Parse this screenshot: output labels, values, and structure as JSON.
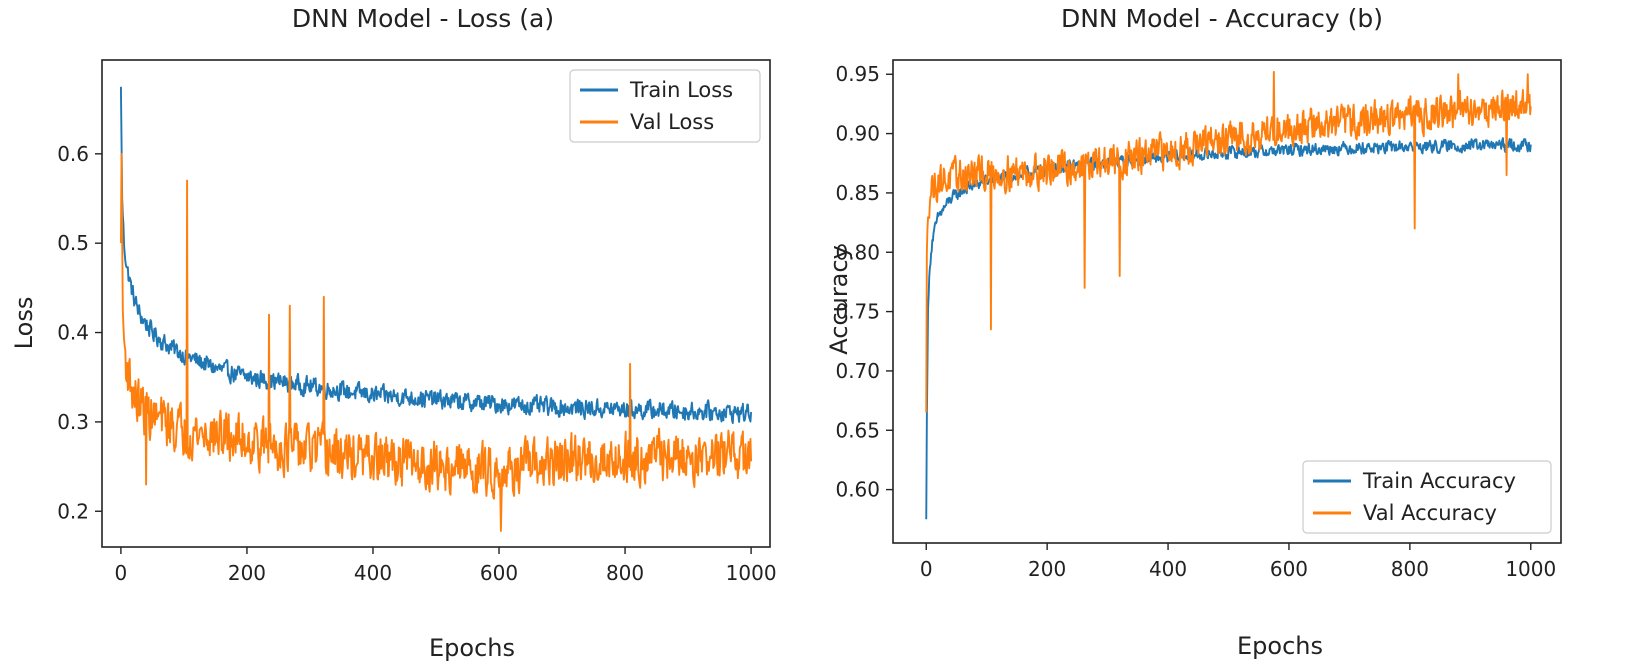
{
  "colors": {
    "train": "#1f77b4",
    "val": "#ff7f0e",
    "axis": "#222222"
  },
  "chart_data": [
    {
      "type": "line",
      "title": "DNN Model - Loss (a)",
      "xlabel": "Epochs",
      "ylabel": "Loss",
      "xlim": [
        -30,
        1030
      ],
      "ylim": [
        0.16,
        0.705
      ],
      "xticks": [
        0,
        200,
        400,
        600,
        800,
        1000
      ],
      "xtick_labels": [
        "0",
        "200",
        "400",
        "600",
        "800",
        "1000"
      ],
      "yticks": [
        0.2,
        0.3,
        0.4,
        0.5,
        0.6
      ],
      "ytick_labels": [
        "0.2",
        "0.3",
        "0.4",
        "0.5",
        "0.6"
      ],
      "legend_position": "top-right",
      "series": [
        {
          "name": "Train Loss",
          "color": "#1f77b4",
          "x": [
            0,
            2,
            5,
            10,
            20,
            30,
            50,
            75,
            100,
            150,
            200,
            250,
            300,
            350,
            400,
            450,
            500,
            550,
            600,
            650,
            700,
            750,
            800,
            850,
            900,
            950,
            1000
          ],
          "y": [
            0.675,
            0.55,
            0.5,
            0.47,
            0.44,
            0.42,
            0.4,
            0.385,
            0.375,
            0.36,
            0.35,
            0.345,
            0.34,
            0.335,
            0.33,
            0.328,
            0.325,
            0.322,
            0.32,
            0.318,
            0.316,
            0.315,
            0.314,
            0.313,
            0.312,
            0.311,
            0.31
          ],
          "noise": 0.014
        },
        {
          "name": "Val Loss",
          "color": "#ff7f0e",
          "x": [
            0,
            1,
            3,
            6,
            10,
            20,
            40,
            70,
            100,
            150,
            200,
            250,
            300,
            350,
            400,
            450,
            500,
            550,
            600,
            650,
            700,
            750,
            800,
            850,
            900,
            950,
            1000
          ],
          "y": [
            0.5,
            0.6,
            0.42,
            0.38,
            0.36,
            0.33,
            0.31,
            0.3,
            0.29,
            0.285,
            0.28,
            0.272,
            0.268,
            0.262,
            0.258,
            0.255,
            0.25,
            0.248,
            0.245,
            0.25,
            0.255,
            0.258,
            0.26,
            0.262,
            0.26,
            0.262,
            0.26
          ],
          "noise": 0.038,
          "spikes": [
            [
              105,
              0.57
            ],
            [
              235,
              0.42
            ],
            [
              268,
              0.43
            ],
            [
              322,
              0.44
            ],
            [
              808,
              0.365
            ],
            [
              40,
              0.23
            ],
            [
              603,
              0.178
            ]
          ]
        }
      ]
    },
    {
      "type": "line",
      "title": "DNN Model - Accuracy (b)",
      "xlabel": "Epochs",
      "ylabel": "Accuracy",
      "xlim": [
        -55,
        1050
      ],
      "ylim": [
        0.555,
        0.962
      ],
      "xticks": [
        0,
        200,
        400,
        600,
        800,
        1000
      ],
      "xtick_labels": [
        "0",
        "200",
        "400",
        "600",
        "800",
        "1000"
      ],
      "yticks": [
        0.6,
        0.65,
        0.7,
        0.75,
        0.8,
        0.85,
        0.9,
        0.95
      ],
      "ytick_labels": [
        "0.60",
        "0.65",
        "0.70",
        "0.75",
        "0.80",
        "0.85",
        "0.90",
        "0.95"
      ],
      "legend_position": "bottom-right",
      "series": [
        {
          "name": "Train Accuracy",
          "color": "#1f77b4",
          "x": [
            0,
            1,
            3,
            6,
            10,
            20,
            40,
            70,
            100,
            150,
            200,
            250,
            300,
            350,
            400,
            450,
            500,
            550,
            600,
            650,
            700,
            750,
            800,
            850,
            900,
            950,
            1000
          ],
          "y": [
            0.575,
            0.66,
            0.75,
            0.79,
            0.81,
            0.83,
            0.845,
            0.855,
            0.86,
            0.865,
            0.87,
            0.873,
            0.876,
            0.878,
            0.88,
            0.882,
            0.884,
            0.885,
            0.886,
            0.887,
            0.888,
            0.888,
            0.889,
            0.889,
            0.89,
            0.89,
            0.89
          ],
          "noise": 0.007
        },
        {
          "name": "Val Accuracy",
          "color": "#ff7f0e",
          "x": [
            0,
            1,
            3,
            6,
            10,
            20,
            40,
            70,
            100,
            150,
            200,
            250,
            300,
            350,
            400,
            450,
            500,
            550,
            600,
            650,
            700,
            750,
            800,
            850,
            900,
            950,
            1000
          ],
          "y": [
            0.665,
            0.8,
            0.84,
            0.85,
            0.855,
            0.86,
            0.862,
            0.865,
            0.866,
            0.868,
            0.87,
            0.872,
            0.876,
            0.88,
            0.885,
            0.89,
            0.895,
            0.9,
            0.905,
            0.907,
            0.91,
            0.913,
            0.915,
            0.918,
            0.92,
            0.922,
            0.925
          ],
          "noise": 0.02,
          "spikes": [
            [
              107,
              0.735
            ],
            [
              262,
              0.77
            ],
            [
              320,
              0.78
            ],
            [
              808,
              0.82
            ],
            [
              960,
              0.865
            ],
            [
              575,
              0.952
            ],
            [
              880,
              0.95
            ],
            [
              995,
              0.95
            ]
          ]
        }
      ]
    }
  ]
}
